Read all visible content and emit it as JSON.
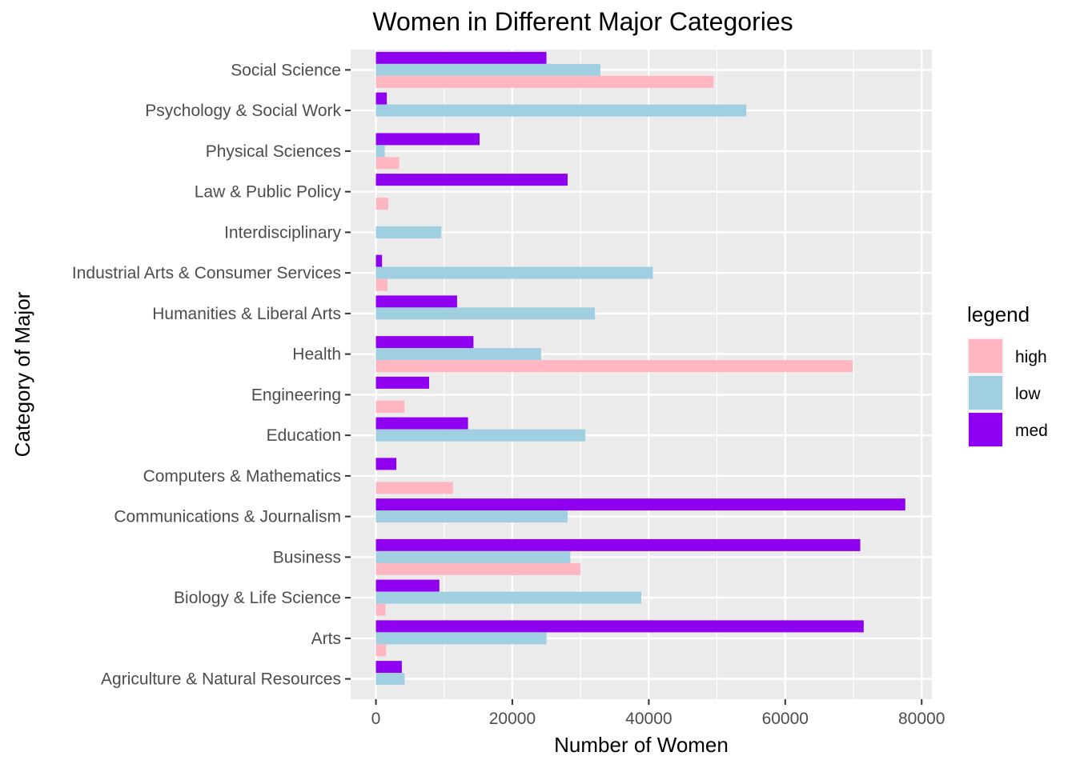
{
  "chart_data": {
    "type": "bar",
    "orientation": "horizontal",
    "title": "Women in Different Major Categories",
    "xlabel": "Number of Women",
    "ylabel": "Category of Major",
    "xlim": [
      -3700,
      81500
    ],
    "x_ticks": [
      0,
      20000,
      40000,
      60000,
      80000
    ],
    "grid": true,
    "legend": {
      "title": "legend",
      "position": "right",
      "entries": [
        {
          "label": "high",
          "color": "#FFB6C1"
        },
        {
          "label": "low",
          "color": "#9FCFE0"
        },
        {
          "label": "med",
          "color": "#8F00F0"
        }
      ]
    },
    "categories": [
      "Social Science",
      "Psychology & Social Work",
      "Physical Sciences",
      "Law & Public Policy",
      "Interdisciplinary",
      "Industrial Arts & Consumer Services",
      "Humanities & Liberal Arts",
      "Health",
      "Engineering",
      "Education",
      "Computers & Mathematics",
      "Communications & Journalism",
      "Business",
      "Biology & Life Science",
      "Arts",
      "Agriculture & Natural Resources"
    ],
    "series": [
      {
        "name": "med",
        "color": "#8F00F0",
        "values": [
          25000,
          1600,
          15200,
          28100,
          0,
          900,
          11900,
          14300,
          7800,
          13500,
          3000,
          77600,
          71000,
          9300,
          71500,
          3800
        ]
      },
      {
        "name": "low",
        "color": "#9FCFE0",
        "values": [
          32900,
          54300,
          1300,
          0,
          9600,
          40600,
          32100,
          24200,
          0,
          30700,
          0,
          28100,
          28500,
          38900,
          25000,
          4200
        ]
      },
      {
        "name": "high",
        "color": "#FFB6C1",
        "values": [
          49500,
          0,
          3400,
          1800,
          0,
          1700,
          0,
          69900,
          4200,
          0,
          11300,
          0,
          30000,
          1400,
          1500,
          0
        ]
      }
    ]
  }
}
